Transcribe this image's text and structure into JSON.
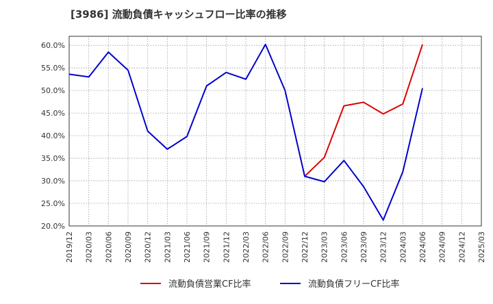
{
  "chart_data": {
    "type": "line",
    "title": "[3986]  流動負債キャッシュフロー比率の推移",
    "xlabel": "",
    "ylabel": "",
    "x": [
      "2019/12",
      "2020/03",
      "2020/06",
      "2020/09",
      "2020/12",
      "2021/03",
      "2021/06",
      "2021/09",
      "2021/12",
      "2022/03",
      "2022/06",
      "2022/09",
      "2022/12",
      "2023/03",
      "2023/06",
      "2023/09",
      "2023/12",
      "2024/03",
      "2024/06",
      "2024/09",
      "2024/12",
      "2025/03"
    ],
    "yticks": [
      "20.0%",
      "25.0%",
      "30.0%",
      "35.0%",
      "40.0%",
      "45.0%",
      "50.0%",
      "55.0%",
      "60.0%"
    ],
    "ylim": [
      20,
      62
    ],
    "grid": true,
    "legend_position": "bottom-center",
    "series": [
      {
        "name": "流動負債営業CF比率",
        "color": "#dd0000",
        "values": [
          null,
          null,
          null,
          null,
          null,
          null,
          null,
          null,
          null,
          null,
          null,
          null,
          31.0,
          35.2,
          46.6,
          47.4,
          44.8,
          47.0,
          60.2,
          null,
          null,
          null
        ]
      },
      {
        "name": "流動負債フリーCF比率",
        "color": "#0000cc",
        "values": [
          53.6,
          53.0,
          58.5,
          54.5,
          41.0,
          37.0,
          39.8,
          51.0,
          54.0,
          52.5,
          60.2,
          50.0,
          31.0,
          29.8,
          34.5,
          28.7,
          21.3,
          32.0,
          50.5,
          null,
          null,
          null
        ]
      }
    ]
  }
}
